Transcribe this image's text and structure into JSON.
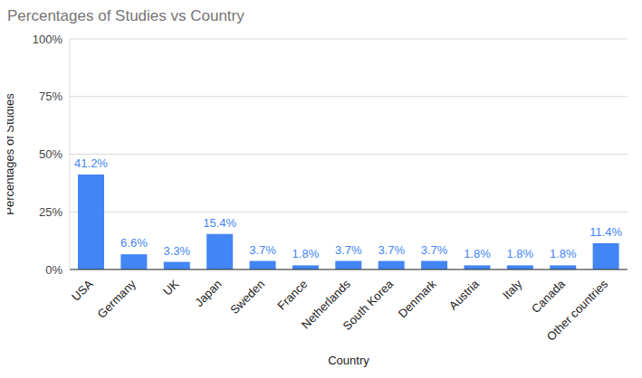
{
  "chart_data": {
    "type": "bar",
    "title": "Percentages of Studies vs Country",
    "x_label": "Country",
    "y_label": "Percentages of Studies",
    "categories": [
      "USA",
      "Germany",
      "UK",
      "Japan",
      "Sweden",
      "France",
      "Netherlands",
      "South Korea",
      "Denmark",
      "Austria",
      "Italy",
      "Canada",
      "Other countries"
    ],
    "values": [
      41.2,
      6.6,
      3.3,
      15.4,
      3.7,
      1.8,
      3.7,
      3.7,
      3.7,
      1.8,
      1.8,
      1.8,
      11.4
    ],
    "value_labels": [
      "41.2%",
      "6.6%",
      "3.3%",
      "15.4%",
      "3.7%",
      "1.8%",
      "3.7%",
      "3.7%",
      "3.7%",
      "1.8%",
      "1.8%",
      "1.8%",
      "11.4%"
    ],
    "color": "#4285f4",
    "ylim": [
      0,
      100
    ],
    "yticks": [
      {
        "value": 0,
        "label": "0%"
      },
      {
        "value": 25,
        "label": "25%"
      },
      {
        "value": 50,
        "label": "50%"
      },
      {
        "value": 75,
        "label": "75%"
      },
      {
        "value": 100,
        "label": "100%"
      }
    ],
    "grid": true,
    "data_labels": true
  }
}
